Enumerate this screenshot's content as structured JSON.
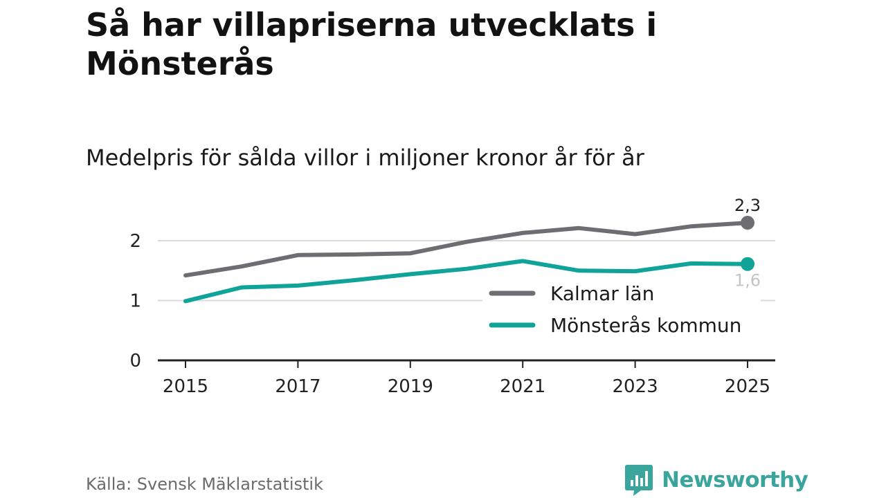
{
  "header": {
    "title": "Så har villapriserna utvecklats i Mönsterås",
    "subtitle": "Medelpris för sålda villor i miljoner kronor år för år"
  },
  "footer": {
    "source": "Källa: Svensk Mäklarstatistik",
    "brand": "Newsworthy"
  },
  "colors": {
    "kalmar": "#6e6d72",
    "monsteras": "#0fa399",
    "grid": "#d9d9d9",
    "axis": "#222222",
    "brand": "#3aa59c"
  },
  "chart_data": {
    "type": "line",
    "title": "Så har villapriserna utvecklats i Mönsterås",
    "subtitle": "Medelpris för sålda villor i miljoner kronor år för år",
    "xlabel": "",
    "ylabel": "",
    "x": [
      2015,
      2016,
      2017,
      2018,
      2019,
      2020,
      2021,
      2022,
      2023,
      2024,
      2025
    ],
    "xticks": [
      "2015",
      "2017",
      "2019",
      "2021",
      "2023",
      "2025"
    ],
    "yticks": [
      "0",
      "1",
      "2"
    ],
    "ylim": [
      0,
      2.5
    ],
    "grid": true,
    "legend_position": "bottom-right",
    "series": [
      {
        "name": "Kalmar län",
        "values": [
          1.42,
          1.57,
          1.76,
          1.77,
          1.79,
          1.98,
          2.13,
          2.21,
          2.11,
          2.24,
          2.3
        ],
        "end_label": "2,3"
      },
      {
        "name": "Mönsterås kommun",
        "values": [
          0.99,
          1.22,
          1.25,
          1.34,
          1.44,
          1.53,
          1.66,
          1.5,
          1.49,
          1.62,
          1.61
        ],
        "end_label": "1,6"
      }
    ]
  }
}
